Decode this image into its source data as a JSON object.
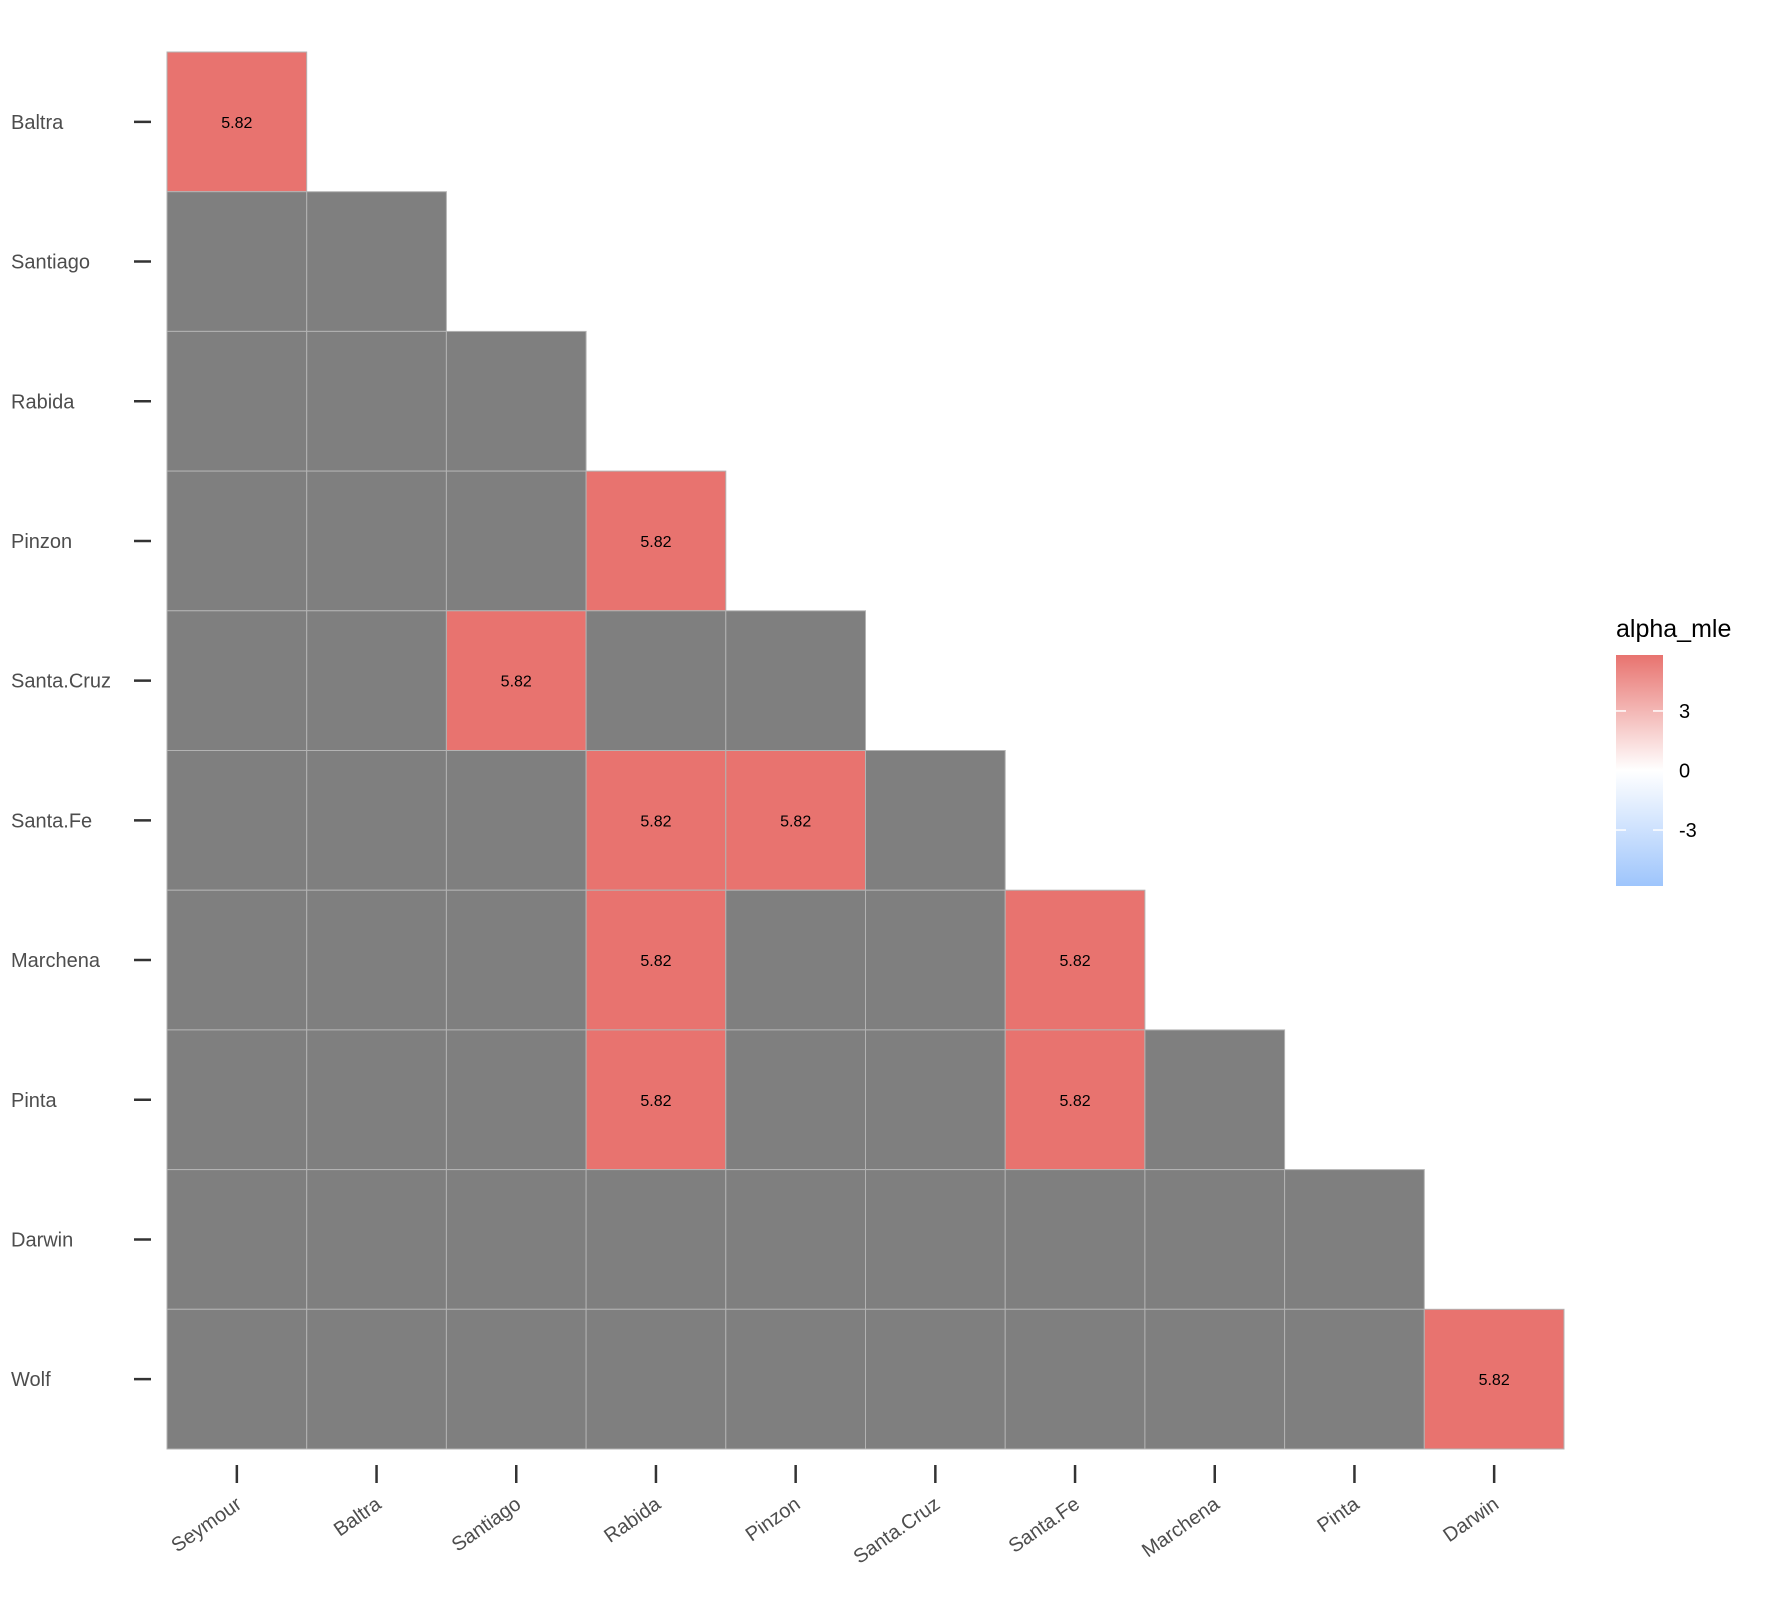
{
  "chart_data": {
    "type": "heatmap",
    "title": "",
    "xlabel": "",
    "ylabel": "",
    "x_categories": [
      "Seymour",
      "Baltra",
      "Santiago",
      "Rabida",
      "Pinzon",
      "Santa.Cruz",
      "Santa.Fe",
      "Marchena",
      "Pinta",
      "Darwin"
    ],
    "y_categories": [
      "Baltra",
      "Santiago",
      "Rabida",
      "Pinzon",
      "Santa.Cruz",
      "Santa.Fe",
      "Marchena",
      "Pinta",
      "Darwin",
      "Wolf"
    ],
    "layout": "lower-triangle",
    "values": [
      [
        5.82
      ],
      [
        null,
        null
      ],
      [
        null,
        null,
        null
      ],
      [
        null,
        null,
        null,
        5.82
      ],
      [
        null,
        null,
        5.82,
        null,
        null
      ],
      [
        null,
        null,
        null,
        5.82,
        5.82,
        null
      ],
      [
        null,
        null,
        null,
        5.82,
        null,
        null,
        5.82
      ],
      [
        null,
        null,
        null,
        5.82,
        null,
        null,
        5.82,
        null
      ],
      [
        null,
        null,
        null,
        null,
        null,
        null,
        null,
        null,
        null
      ],
      [
        null,
        null,
        null,
        null,
        null,
        null,
        null,
        null,
        null,
        5.82
      ]
    ],
    "cell_labels": "5.82",
    "na_color": "#7f7f7f",
    "legend": {
      "title": "alpha_mle",
      "ticks": [
        3,
        0,
        -3
      ],
      "tick_labels": [
        "3",
        "0",
        "-3"
      ],
      "limits": [
        -5.82,
        5.82
      ],
      "low_color": "#9ec5fc",
      "mid_color": "#ffffff",
      "high_color": "#e8736f",
      "placement": "right"
    }
  }
}
